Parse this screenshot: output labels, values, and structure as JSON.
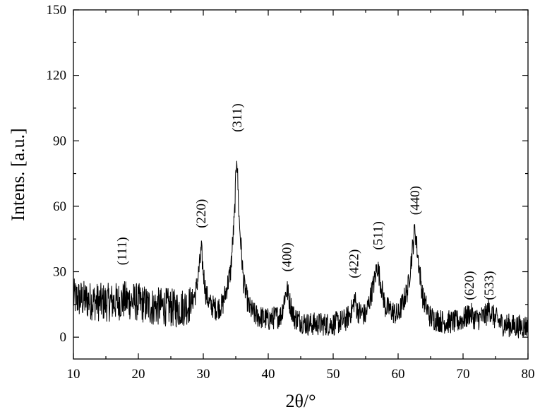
{
  "chart_data": {
    "type": "line",
    "xlabel": "2θ/°",
    "ylabel": "Intens. [a.u.]",
    "xlim": [
      10,
      80
    ],
    "ylim": [
      -10,
      150
    ],
    "xticks": [
      "10",
      "20",
      "30",
      "40",
      "50",
      "60",
      "70",
      "80"
    ],
    "yticks": [
      "0",
      "30",
      "60",
      "90",
      "120",
      "150"
    ],
    "grid": false,
    "legend": "none",
    "line_color": "#000000",
    "series": [
      {
        "values_x": [
          10,
          12,
          14,
          16,
          18,
          20,
          22,
          24,
          26,
          28,
          28.8,
          29.4,
          29.7,
          30.0,
          30.4,
          31.0,
          32,
          33,
          34.2,
          34.8,
          35.15,
          35.5,
          36.2,
          37,
          38,
          40,
          42,
          42.5,
          42.9,
          43.3,
          44,
          46,
          48,
          50,
          52,
          53.0,
          53.3,
          53.7,
          55,
          56.3,
          56.8,
          57.3,
          58,
          60,
          61.5,
          62.2,
          62.6,
          63.0,
          63.8,
          65,
          67,
          69,
          70.5,
          71.0,
          72,
          73.5,
          74.0,
          74.8,
          76,
          78,
          80
        ],
        "values_y": [
          18,
          17,
          16,
          16,
          17,
          16,
          14,
          14,
          13,
          15,
          20,
          32,
          40,
          30,
          20,
          15,
          13,
          15,
          30,
          55,
          85,
          55,
          25,
          14,
          10,
          8,
          10,
          18,
          22,
          16,
          9,
          6,
          6,
          6,
          8,
          13,
          18,
          12,
          10,
          25,
          33,
          25,
          14,
          10,
          22,
          40,
          50,
          38,
          18,
          9,
          7,
          7,
          9,
          11,
          8,
          10,
          13,
          9,
          6,
          5,
          5
        ]
      }
    ],
    "annotations": [
      {
        "text": "(111)",
        "x": 17.5,
        "y": 33
      },
      {
        "text": "(220)",
        "x": 29.7,
        "y": 50
      },
      {
        "text": "(311)",
        "x": 35.2,
        "y": 94
      },
      {
        "text": "(400)",
        "x": 42.9,
        "y": 30
      },
      {
        "text": "(422)",
        "x": 53.2,
        "y": 27
      },
      {
        "text": "(511)",
        "x": 56.9,
        "y": 40
      },
      {
        "text": "(440)",
        "x": 62.6,
        "y": 56
      },
      {
        "text": "(620)",
        "x": 71.0,
        "y": 17
      },
      {
        "text": "(533)",
        "x": 74.0,
        "y": 17
      }
    ]
  }
}
